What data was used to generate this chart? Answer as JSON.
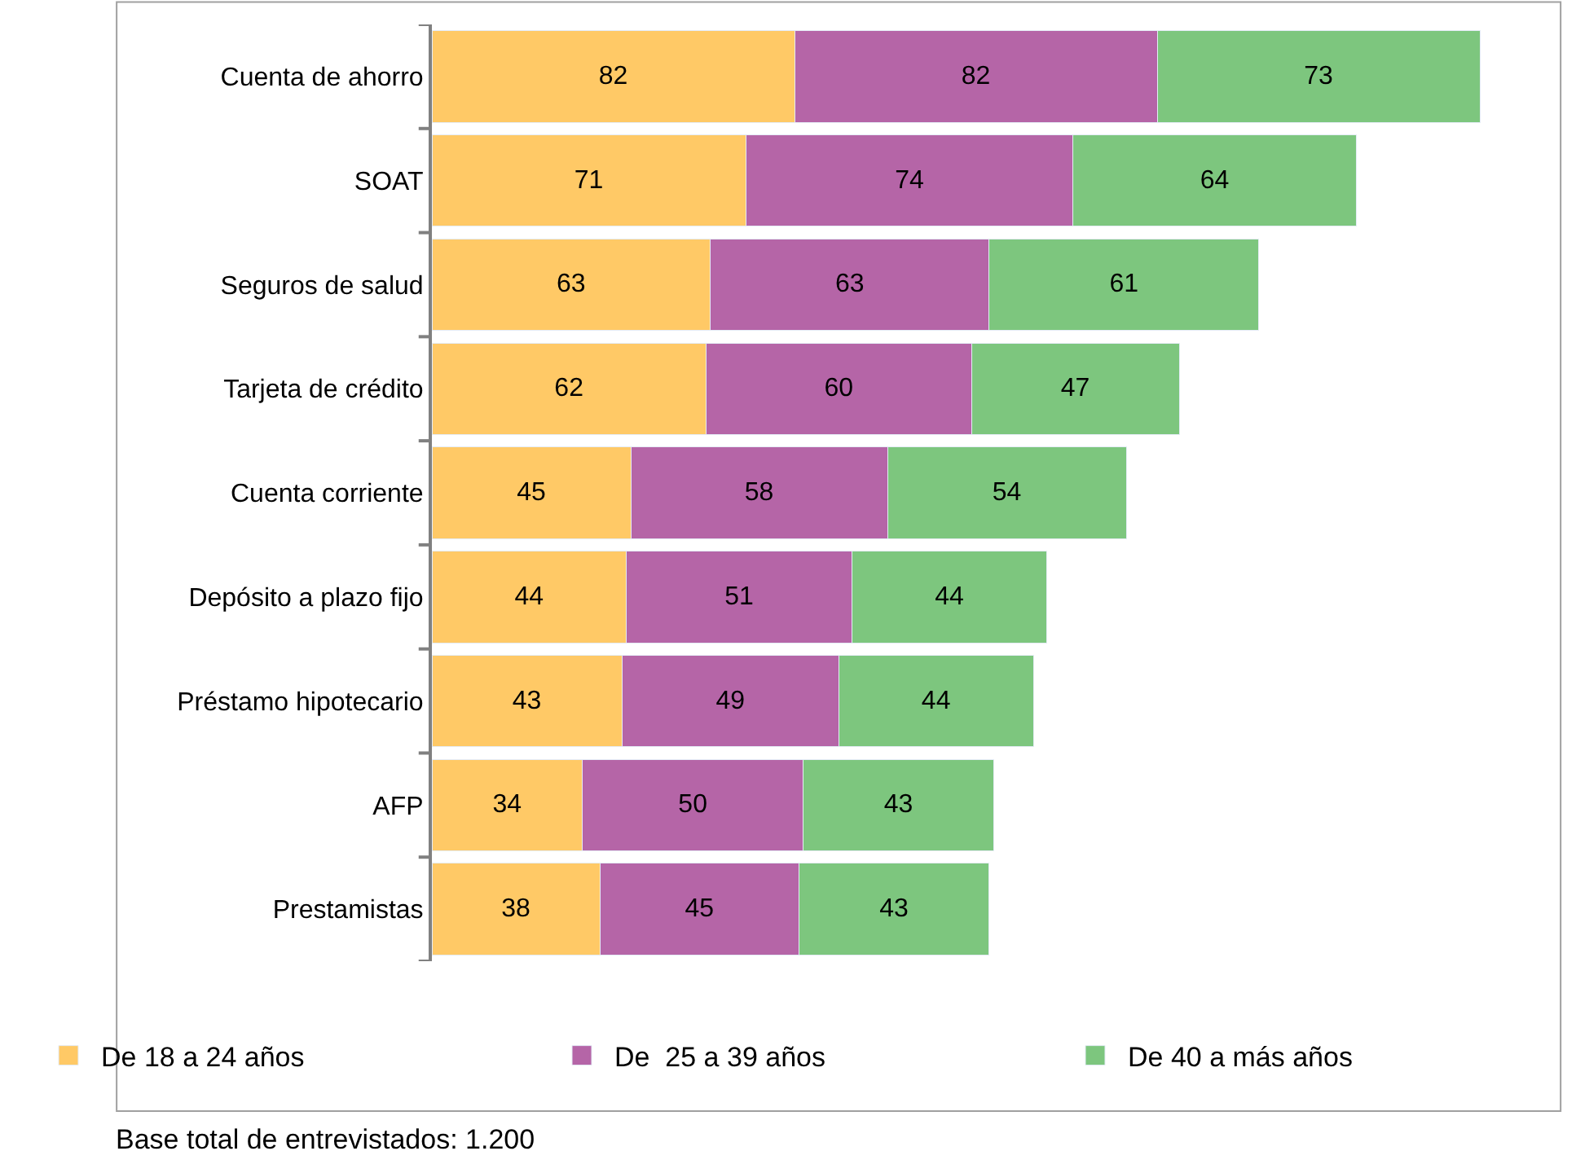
{
  "chart_data": {
    "type": "bar",
    "orientation": "horizontal",
    "stacked": true,
    "data_labels": true,
    "categories": [
      "Cuenta de ahorro",
      "SOAT",
      "Seguros de salud",
      "Tarjeta de crédito",
      "Cuenta corriente",
      "Depósito a plazo fijo",
      "Préstamo hipotecario",
      "AFP",
      "Prestamistas"
    ],
    "series": [
      {
        "name": "De 18 a 24 años",
        "color": "#ffc966",
        "values": [
          82,
          71,
          63,
          62,
          45,
          44,
          43,
          34,
          38
        ]
      },
      {
        "name": "De  25 a 39 años",
        "color": "#b565a7",
        "values": [
          82,
          74,
          63,
          60,
          58,
          51,
          49,
          50,
          45
        ]
      },
      {
        "name": "De 40 a más años",
        "color": "#7dc67e",
        "values": [
          73,
          64,
          61,
          47,
          54,
          44,
          44,
          43,
          43
        ]
      }
    ],
    "legend": "bottom",
    "annotations": [
      "Base total de entrevistados: 1.200"
    ]
  }
}
